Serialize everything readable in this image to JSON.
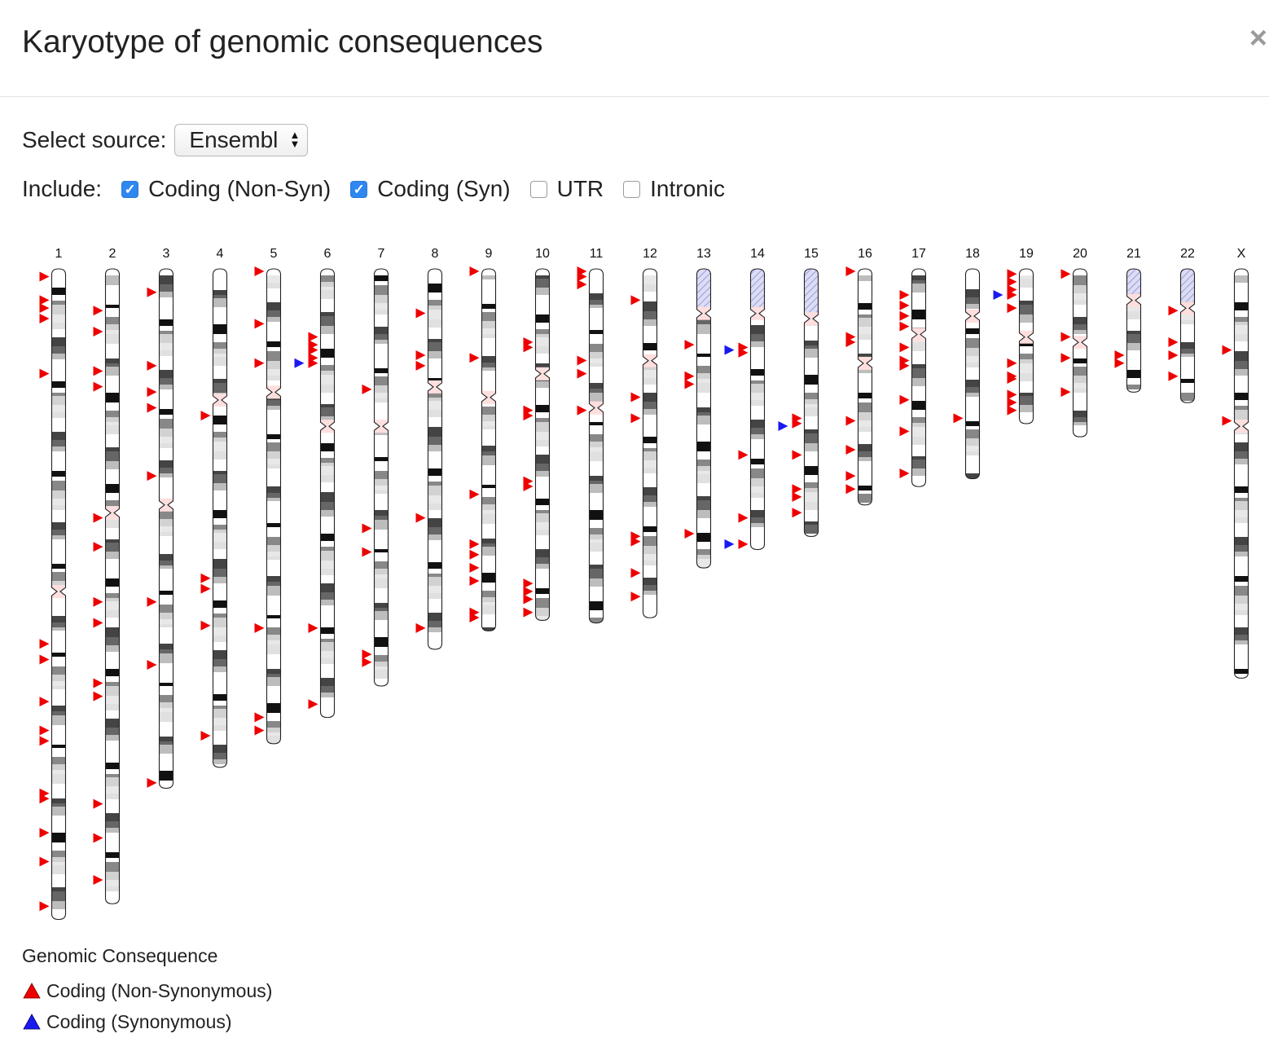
{
  "header": {
    "title": "Karyotype of genomic consequences",
    "close_label": "×"
  },
  "source": {
    "label": "Select source:",
    "selected": "Ensembl"
  },
  "include": {
    "label": "Include:",
    "options": [
      {
        "label": "Coding (Non-Syn)",
        "checked": true
      },
      {
        "label": "Coding (Syn)",
        "checked": true
      },
      {
        "label": "UTR",
        "checked": false
      },
      {
        "label": "Intronic",
        "checked": false
      }
    ]
  },
  "colors": {
    "non_syn": "#ee0000",
    "syn": "#1a1aee",
    "centromere": "#ffdede",
    "stalk": "#c9c9ee"
  },
  "chart_data": {
    "type": "karyotype",
    "chromosomes": [
      {
        "name": "1",
        "length": 248,
        "centromere": 123,
        "acro": false,
        "markers": [
          {
            "pos": 2,
            "type": "non_syn"
          },
          {
            "pos": 11,
            "type": "non_syn"
          },
          {
            "pos": 14,
            "type": "non_syn"
          },
          {
            "pos": 18,
            "type": "non_syn"
          },
          {
            "pos": 39,
            "type": "non_syn"
          },
          {
            "pos": 142,
            "type": "non_syn"
          },
          {
            "pos": 148,
            "type": "non_syn"
          },
          {
            "pos": 164,
            "type": "non_syn"
          },
          {
            "pos": 175,
            "type": "non_syn"
          },
          {
            "pos": 179,
            "type": "non_syn"
          },
          {
            "pos": 199,
            "type": "non_syn"
          },
          {
            "pos": 201,
            "type": "non_syn"
          },
          {
            "pos": 214,
            "type": "non_syn"
          },
          {
            "pos": 225,
            "type": "non_syn"
          },
          {
            "pos": 242,
            "type": "non_syn"
          }
        ]
      },
      {
        "name": "2",
        "length": 242,
        "centromere": 93,
        "acro": false,
        "markers": [
          {
            "pos": 15,
            "type": "non_syn"
          },
          {
            "pos": 23,
            "type": "non_syn"
          },
          {
            "pos": 38,
            "type": "non_syn"
          },
          {
            "pos": 44,
            "type": "non_syn"
          },
          {
            "pos": 94,
            "type": "non_syn"
          },
          {
            "pos": 105,
            "type": "non_syn"
          },
          {
            "pos": 126,
            "type": "non_syn"
          },
          {
            "pos": 134,
            "type": "non_syn"
          },
          {
            "pos": 157,
            "type": "non_syn"
          },
          {
            "pos": 162,
            "type": "non_syn"
          },
          {
            "pos": 203,
            "type": "non_syn"
          },
          {
            "pos": 216,
            "type": "non_syn"
          },
          {
            "pos": 232,
            "type": "non_syn"
          }
        ]
      },
      {
        "name": "3",
        "length": 198,
        "centromere": 90,
        "acro": false,
        "markers": [
          {
            "pos": 8,
            "type": "non_syn"
          },
          {
            "pos": 36,
            "type": "non_syn"
          },
          {
            "pos": 46,
            "type": "non_syn"
          },
          {
            "pos": 52,
            "type": "non_syn"
          },
          {
            "pos": 78,
            "type": "non_syn"
          },
          {
            "pos": 126,
            "type": "non_syn"
          },
          {
            "pos": 150,
            "type": "non_syn"
          },
          {
            "pos": 195,
            "type": "non_syn"
          }
        ]
      },
      {
        "name": "4",
        "length": 190,
        "centromere": 50,
        "acro": false,
        "markers": [
          {
            "pos": 55,
            "type": "non_syn"
          },
          {
            "pos": 117,
            "type": "non_syn"
          },
          {
            "pos": 121,
            "type": "non_syn"
          },
          {
            "pos": 135,
            "type": "non_syn"
          },
          {
            "pos": 177,
            "type": "non_syn"
          }
        ]
      },
      {
        "name": "5",
        "length": 181,
        "centromere": 47,
        "acro": false,
        "markers": [
          {
            "pos": 0,
            "type": "non_syn"
          },
          {
            "pos": 20,
            "type": "non_syn"
          },
          {
            "pos": 35,
            "type": "non_syn"
          },
          {
            "pos": 136,
            "type": "non_syn"
          },
          {
            "pos": 170,
            "type": "non_syn"
          },
          {
            "pos": 175,
            "type": "non_syn"
          }
        ]
      },
      {
        "name": "6",
        "length": 171,
        "centromere": 60,
        "acro": false,
        "markers": [
          {
            "pos": 25,
            "type": "non_syn"
          },
          {
            "pos": 28,
            "type": "non_syn"
          },
          {
            "pos": 30,
            "type": "non_syn"
          },
          {
            "pos": 33,
            "type": "non_syn"
          },
          {
            "pos": 35,
            "type": "non_syn"
          },
          {
            "pos": 35,
            "type": "syn"
          },
          {
            "pos": 136,
            "type": "non_syn"
          },
          {
            "pos": 165,
            "type": "non_syn"
          }
        ]
      },
      {
        "name": "7",
        "length": 159,
        "centromere": 60,
        "acro": false,
        "markers": [
          {
            "pos": 45,
            "type": "non_syn"
          },
          {
            "pos": 98,
            "type": "non_syn"
          },
          {
            "pos": 107,
            "type": "non_syn"
          },
          {
            "pos": 146,
            "type": "non_syn"
          },
          {
            "pos": 149,
            "type": "non_syn"
          }
        ]
      },
      {
        "name": "8",
        "length": 145,
        "centromere": 45,
        "acro": false,
        "markers": [
          {
            "pos": 16,
            "type": "non_syn"
          },
          {
            "pos": 32,
            "type": "non_syn"
          },
          {
            "pos": 36,
            "type": "non_syn"
          },
          {
            "pos": 94,
            "type": "non_syn"
          },
          {
            "pos": 136,
            "type": "non_syn"
          }
        ]
      },
      {
        "name": "9",
        "length": 138,
        "centromere": 49,
        "acro": false,
        "markers": [
          {
            "pos": 0,
            "type": "non_syn"
          },
          {
            "pos": 33,
            "type": "non_syn"
          },
          {
            "pos": 85,
            "type": "non_syn"
          },
          {
            "pos": 104,
            "type": "non_syn"
          },
          {
            "pos": 108,
            "type": "non_syn"
          },
          {
            "pos": 113,
            "type": "non_syn"
          },
          {
            "pos": 118,
            "type": "non_syn"
          },
          {
            "pos": 130,
            "type": "non_syn"
          },
          {
            "pos": 132,
            "type": "non_syn"
          }
        ]
      },
      {
        "name": "10",
        "length": 134,
        "centromere": 40,
        "acro": false,
        "markers": [
          {
            "pos": 27,
            "type": "non_syn"
          },
          {
            "pos": 29,
            "type": "non_syn"
          },
          {
            "pos": 53,
            "type": "non_syn"
          },
          {
            "pos": 55,
            "type": "non_syn"
          },
          {
            "pos": 80,
            "type": "non_syn"
          },
          {
            "pos": 82,
            "type": "non_syn"
          },
          {
            "pos": 119,
            "type": "non_syn"
          },
          {
            "pos": 122,
            "type": "non_syn"
          },
          {
            "pos": 125,
            "type": "non_syn"
          },
          {
            "pos": 130,
            "type": "non_syn"
          }
        ]
      },
      {
        "name": "11",
        "length": 135,
        "centromere": 53,
        "acro": false,
        "markers": [
          {
            "pos": 0,
            "type": "non_syn"
          },
          {
            "pos": 2,
            "type": "non_syn"
          },
          {
            "pos": 5,
            "type": "non_syn"
          },
          {
            "pos": 34,
            "type": "non_syn"
          },
          {
            "pos": 39,
            "type": "non_syn"
          },
          {
            "pos": 53,
            "type": "non_syn"
          }
        ]
      },
      {
        "name": "12",
        "length": 133,
        "centromere": 35,
        "acro": false,
        "markers": [
          {
            "pos": 11,
            "type": "non_syn"
          },
          {
            "pos": 48,
            "type": "non_syn"
          },
          {
            "pos": 56,
            "type": "non_syn"
          },
          {
            "pos": 101,
            "type": "non_syn"
          },
          {
            "pos": 103,
            "type": "non_syn"
          },
          {
            "pos": 115,
            "type": "non_syn"
          },
          {
            "pos": 124,
            "type": "non_syn"
          }
        ]
      },
      {
        "name": "13",
        "length": 114,
        "centromere": 17,
        "acro": true,
        "markers": [
          {
            "pos": 28,
            "type": "non_syn"
          },
          {
            "pos": 40,
            "type": "non_syn"
          },
          {
            "pos": 43,
            "type": "non_syn"
          },
          {
            "pos": 100,
            "type": "non_syn"
          }
        ]
      },
      {
        "name": "14",
        "length": 107,
        "centromere": 17,
        "acro": true,
        "markers": [
          {
            "pos": 29,
            "type": "non_syn"
          },
          {
            "pos": 31,
            "type": "non_syn"
          },
          {
            "pos": 30,
            "type": "syn"
          },
          {
            "pos": 70,
            "type": "non_syn"
          },
          {
            "pos": 94,
            "type": "non_syn"
          },
          {
            "pos": 104,
            "type": "non_syn"
          },
          {
            "pos": 104,
            "type": "syn"
          }
        ]
      },
      {
        "name": "15",
        "length": 102,
        "centromere": 19,
        "acro": true,
        "markers": [
          {
            "pos": 56,
            "type": "non_syn"
          },
          {
            "pos": 58,
            "type": "non_syn"
          },
          {
            "pos": 59,
            "type": "syn"
          },
          {
            "pos": 70,
            "type": "non_syn"
          },
          {
            "pos": 83,
            "type": "non_syn"
          },
          {
            "pos": 86,
            "type": "non_syn"
          },
          {
            "pos": 92,
            "type": "non_syn"
          }
        ]
      },
      {
        "name": "16",
        "length": 90,
        "centromere": 36,
        "acro": false,
        "markers": [
          {
            "pos": 0,
            "type": "non_syn"
          },
          {
            "pos": 25,
            "type": "non_syn"
          },
          {
            "pos": 27,
            "type": "non_syn"
          },
          {
            "pos": 57,
            "type": "non_syn"
          },
          {
            "pos": 68,
            "type": "non_syn"
          },
          {
            "pos": 78,
            "type": "non_syn"
          },
          {
            "pos": 83,
            "type": "non_syn"
          }
        ]
      },
      {
        "name": "17",
        "length": 83,
        "centromere": 25,
        "acro": false,
        "markers": [
          {
            "pos": 9,
            "type": "non_syn"
          },
          {
            "pos": 13,
            "type": "non_syn"
          },
          {
            "pos": 17,
            "type": "non_syn"
          },
          {
            "pos": 21,
            "type": "non_syn"
          },
          {
            "pos": 29,
            "type": "non_syn"
          },
          {
            "pos": 34,
            "type": "non_syn"
          },
          {
            "pos": 36,
            "type": "non_syn"
          },
          {
            "pos": 49,
            "type": "non_syn"
          },
          {
            "pos": 61,
            "type": "non_syn"
          },
          {
            "pos": 77,
            "type": "non_syn"
          }
        ]
      },
      {
        "name": "18",
        "length": 80,
        "centromere": 18,
        "acro": false,
        "markers": [
          {
            "pos": 56,
            "type": "non_syn"
          }
        ]
      },
      {
        "name": "19",
        "length": 59,
        "centromere": 26,
        "acro": false,
        "markers": [
          {
            "pos": 1,
            "type": "non_syn"
          },
          {
            "pos": 4,
            "type": "non_syn"
          },
          {
            "pos": 7,
            "type": "non_syn"
          },
          {
            "pos": 9,
            "type": "non_syn"
          },
          {
            "pos": 9,
            "type": "syn"
          },
          {
            "pos": 14,
            "type": "non_syn"
          },
          {
            "pos": 35,
            "type": "non_syn"
          },
          {
            "pos": 40,
            "type": "non_syn"
          },
          {
            "pos": 41,
            "type": "non_syn"
          },
          {
            "pos": 47,
            "type": "non_syn"
          },
          {
            "pos": 50,
            "type": "non_syn"
          },
          {
            "pos": 53,
            "type": "non_syn"
          }
        ]
      },
      {
        "name": "20",
        "length": 64,
        "centromere": 28,
        "acro": false,
        "markers": [
          {
            "pos": 1,
            "type": "non_syn"
          },
          {
            "pos": 25,
            "type": "non_syn"
          },
          {
            "pos": 33,
            "type": "non_syn"
          },
          {
            "pos": 46,
            "type": "non_syn"
          }
        ]
      },
      {
        "name": "21",
        "length": 47,
        "centromere": 12,
        "acro": true,
        "markers": [
          {
            "pos": 32,
            "type": "non_syn"
          },
          {
            "pos": 35,
            "type": "non_syn"
          }
        ]
      },
      {
        "name": "22",
        "length": 51,
        "centromere": 15,
        "acro": true,
        "markers": [
          {
            "pos": 15,
            "type": "non_syn"
          },
          {
            "pos": 27,
            "type": "non_syn"
          },
          {
            "pos": 32,
            "type": "non_syn"
          },
          {
            "pos": 40,
            "type": "non_syn"
          }
        ]
      },
      {
        "name": "X",
        "length": 156,
        "centromere": 60,
        "acro": false,
        "markers": [
          {
            "pos": 30,
            "type": "non_syn"
          },
          {
            "pos": 57,
            "type": "non_syn"
          }
        ]
      }
    ]
  },
  "legend": {
    "title": "Genomic Consequence",
    "items": [
      {
        "label": "Coding (Non-Synonymous)",
        "type": "non_syn"
      },
      {
        "label": "Coding (Synonymous)",
        "type": "syn"
      }
    ]
  }
}
